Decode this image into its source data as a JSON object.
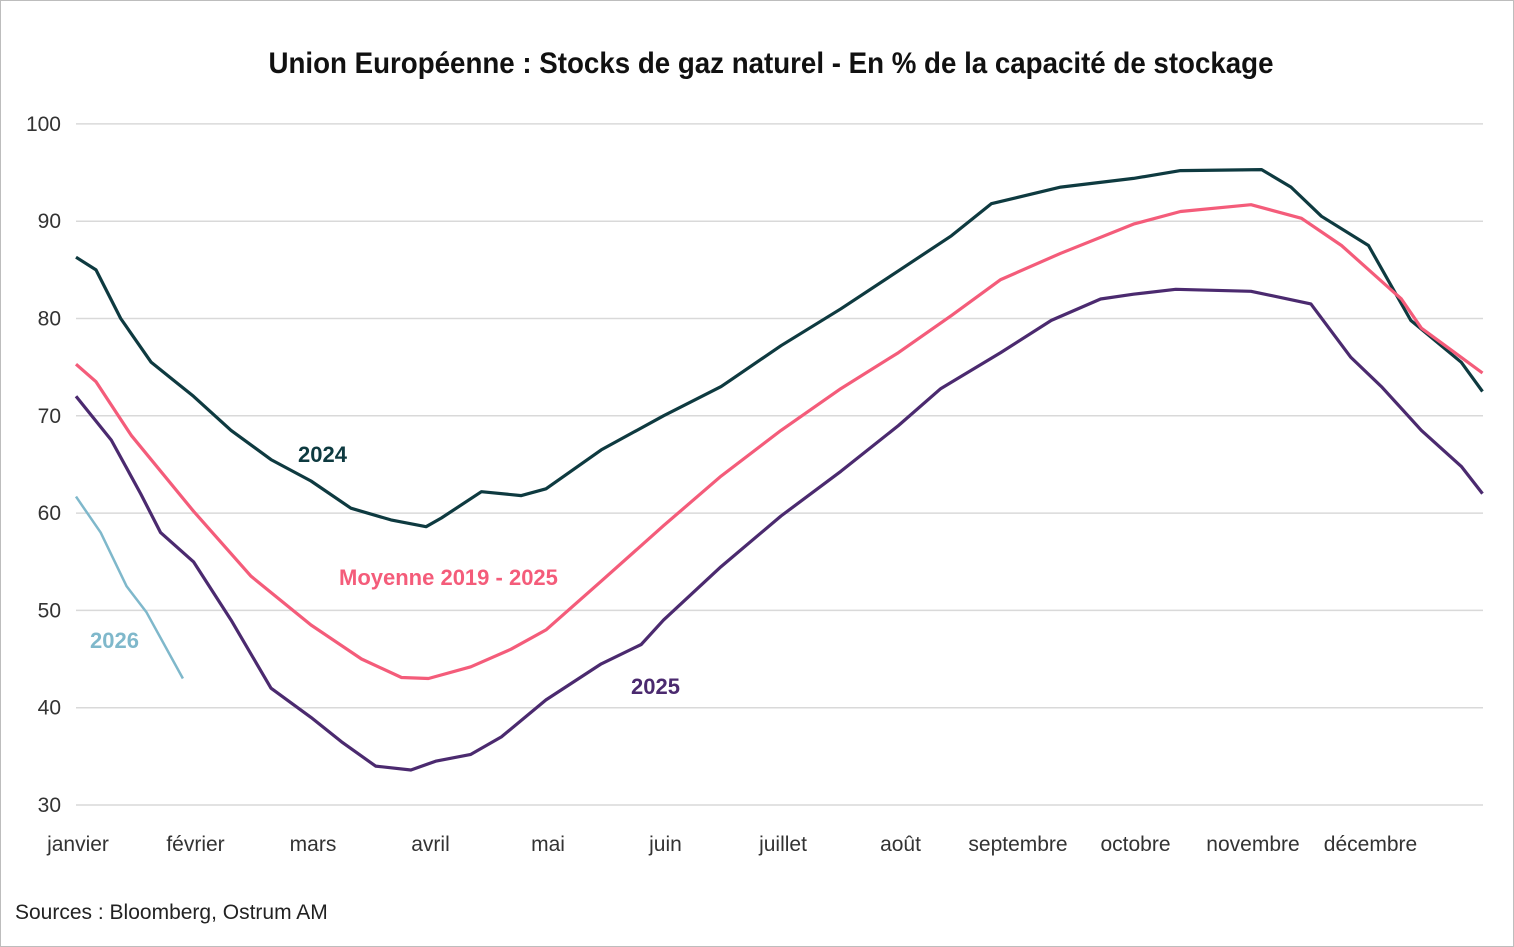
{
  "chart_data": {
    "type": "line",
    "title": "Union Européenne : Stocks de gaz naturel - En % de la capacité de stockage",
    "xlabel": "",
    "ylabel": "",
    "x_unit": "month index (0 = début janvier, 12 = fin décembre)",
    "x_ticks": [
      "janvier",
      "février",
      "mars",
      "avril",
      "mai",
      "juin",
      "juillet",
      "août",
      "septembre",
      "octobre",
      "novembre",
      "décembre"
    ],
    "y_ticks": [
      30,
      40,
      50,
      60,
      70,
      80,
      90,
      100
    ],
    "ylim": [
      30,
      100
    ],
    "xlim": [
      0,
      12
    ],
    "grid": true,
    "legend": "inline labels",
    "series": [
      {
        "name": "2024",
        "color": "#0e3a40",
        "x": [
          0,
          0.17,
          0.38,
          0.64,
          1.0,
          1.32,
          1.66,
          2.0,
          2.34,
          2.68,
          2.98,
          3.11,
          3.45,
          3.79,
          4.0,
          4.47,
          5.0,
          5.49,
          6.0,
          6.51,
          7.0,
          7.45,
          7.79,
          8.0,
          8.38,
          9.0,
          9.4,
          10.09,
          10.34,
          10.6,
          11.0,
          11.36,
          11.79,
          11.97
        ],
        "y": [
          86.3,
          85.0,
          80.0,
          75.5,
          72.0,
          68.5,
          65.5,
          63.3,
          60.5,
          59.3,
          58.6,
          59.5,
          62.2,
          61.8,
          62.5,
          66.5,
          70.0,
          73.0,
          77.2,
          81.0,
          84.9,
          88.5,
          91.8,
          92.4,
          93.5,
          94.4,
          95.2,
          95.3,
          93.5,
          90.5,
          87.5,
          79.8,
          75.5,
          72.5
        ]
      },
      {
        "name": "Moyenne 2019 - 2025",
        "color": "#f45c7a",
        "x": [
          0,
          0.17,
          0.47,
          1.0,
          1.49,
          2.0,
          2.43,
          2.77,
          3.0,
          3.36,
          3.7,
          4.0,
          4.47,
          5.0,
          5.49,
          6.0,
          6.51,
          7.0,
          7.45,
          7.87,
          8.38,
          9.0,
          9.4,
          10.0,
          10.43,
          10.77,
          11.28,
          11.45,
          11.79,
          11.97
        ],
        "y": [
          75.3,
          73.5,
          68.0,
          60.2,
          53.5,
          48.5,
          45.0,
          43.1,
          43.0,
          44.2,
          46.0,
          48.0,
          53.0,
          58.7,
          63.8,
          68.5,
          72.8,
          76.5,
          80.3,
          84.0,
          86.7,
          89.7,
          91.0,
          91.7,
          90.3,
          87.5,
          82.0,
          79.0,
          76.0,
          74.4
        ]
      },
      {
        "name": "2025",
        "color": "#4b2a6f",
        "x": [
          0,
          0.3,
          0.55,
          0.72,
          1.0,
          1.32,
          1.66,
          2.0,
          2.26,
          2.55,
          2.85,
          3.06,
          3.36,
          3.62,
          4.0,
          4.47,
          4.81,
          5.0,
          5.49,
          6.0,
          6.51,
          7.0,
          7.36,
          7.87,
          8.3,
          8.72,
          9.0,
          9.36,
          10.0,
          10.51,
          10.85,
          11.11,
          11.45,
          11.79,
          11.97
        ],
        "y": [
          72.0,
          67.5,
          62.0,
          58.0,
          55.0,
          49.0,
          42.0,
          39.0,
          36.5,
          34.0,
          33.6,
          34.5,
          35.2,
          37.0,
          40.8,
          44.5,
          46.5,
          49.0,
          54.5,
          59.7,
          64.3,
          69.0,
          72.8,
          76.5,
          79.8,
          82.0,
          82.5,
          83.0,
          82.8,
          81.5,
          76.0,
          73.0,
          68.5,
          64.8,
          62.0
        ]
      },
      {
        "name": "2026",
        "color": "#7fb8cb",
        "x": [
          0,
          0.21,
          0.43,
          0.6,
          0.91
        ],
        "y": [
          61.7,
          58.0,
          52.5,
          49.8,
          43.0
        ]
      }
    ],
    "source": "Sources : Bloomberg, Ostrum AM"
  }
}
